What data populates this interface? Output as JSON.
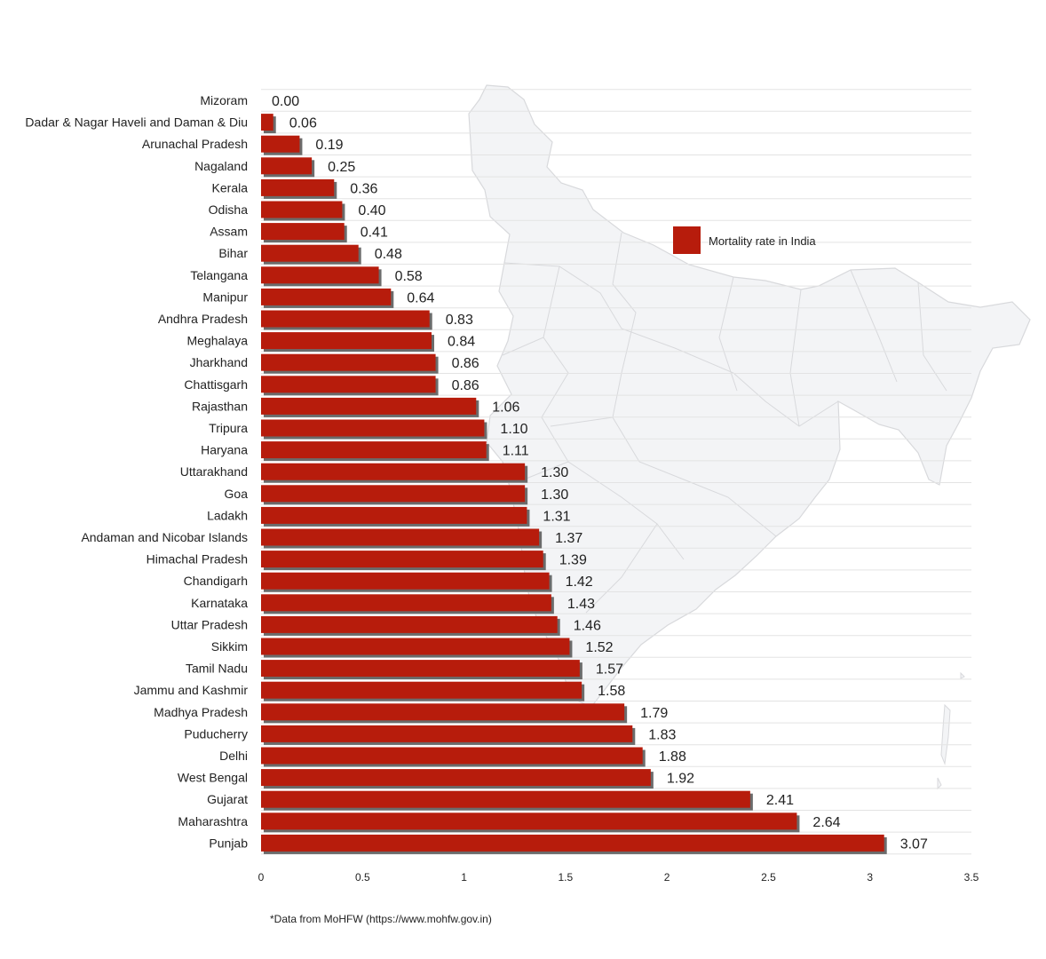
{
  "chart_data": {
    "type": "bar",
    "orientation": "horizontal",
    "categories": [
      "Mizoram",
      "Dadar & Nagar Haveli and Daman & Diu",
      "Arunachal Pradesh",
      "Nagaland",
      "Kerala",
      "Odisha",
      "Assam",
      "Bihar",
      "Telangana",
      "Manipur",
      "Andhra Pradesh",
      "Meghalaya",
      "Jharkhand",
      "Chattisgarh",
      "Rajasthan",
      "Tripura",
      "Haryana",
      "Uttarakhand",
      "Goa",
      "Ladakh",
      "Andaman and Nicobar Islands",
      "Himachal Pradesh",
      "Chandigarh",
      "Karnataka",
      "Uttar Pradesh",
      "Sikkim",
      "Tamil Nadu",
      "Jammu and Kashmir",
      "Madhya Pradesh",
      "Puducherry",
      "Delhi",
      "West Bengal",
      "Gujarat",
      "Maharashtra",
      "Punjab"
    ],
    "value_labels": [
      "0.00",
      "0.06",
      "0.19",
      "0.25",
      "0.36",
      "0.40",
      "0.41",
      "0.48",
      "0.58",
      "0.64",
      "0.83",
      "0.84",
      "0.86",
      "0.86",
      "1.06",
      "1.10",
      "1.11",
      "1.30",
      "1.30",
      "1.31",
      "1.37",
      "1.39",
      "1.42",
      "1.43",
      "1.46",
      "1.52",
      "1.57",
      "1.58",
      "1.79",
      "1.83",
      "1.88",
      "1.92",
      "2.41",
      "2.64",
      "3.07"
    ],
    "series": [
      {
        "name": "Mortality rate in India",
        "values": [
          0.0,
          0.06,
          0.19,
          0.25,
          0.36,
          0.4,
          0.41,
          0.48,
          0.58,
          0.64,
          0.83,
          0.84,
          0.86,
          0.86,
          1.06,
          1.1,
          1.11,
          1.3,
          1.3,
          1.31,
          1.37,
          1.39,
          1.42,
          1.43,
          1.46,
          1.52,
          1.57,
          1.58,
          1.79,
          1.83,
          1.88,
          1.92,
          2.41,
          2.64,
          3.07
        ]
      }
    ],
    "xlim": [
      0,
      3.5
    ],
    "xticks": [
      "0",
      "0.5",
      "1",
      "1.5",
      "2",
      "2.5",
      "3",
      "3.5"
    ],
    "xtick_values": [
      0,
      0.5,
      1,
      1.5,
      2,
      2.5,
      3,
      3.5
    ],
    "grid": true,
    "legend_position": "top-right",
    "background_image": "india-map-silhouette",
    "colors": {
      "bar": "#b71c0c",
      "bar_shadow": "#6b6b6b",
      "grid": "#e3e3e3",
      "map_fill": "#f3f4f6",
      "map_stroke": "#d8d9dc",
      "text": "#222222"
    }
  },
  "footnote": "*Data from MoHFW (https://www.mohfw.gov.in)"
}
